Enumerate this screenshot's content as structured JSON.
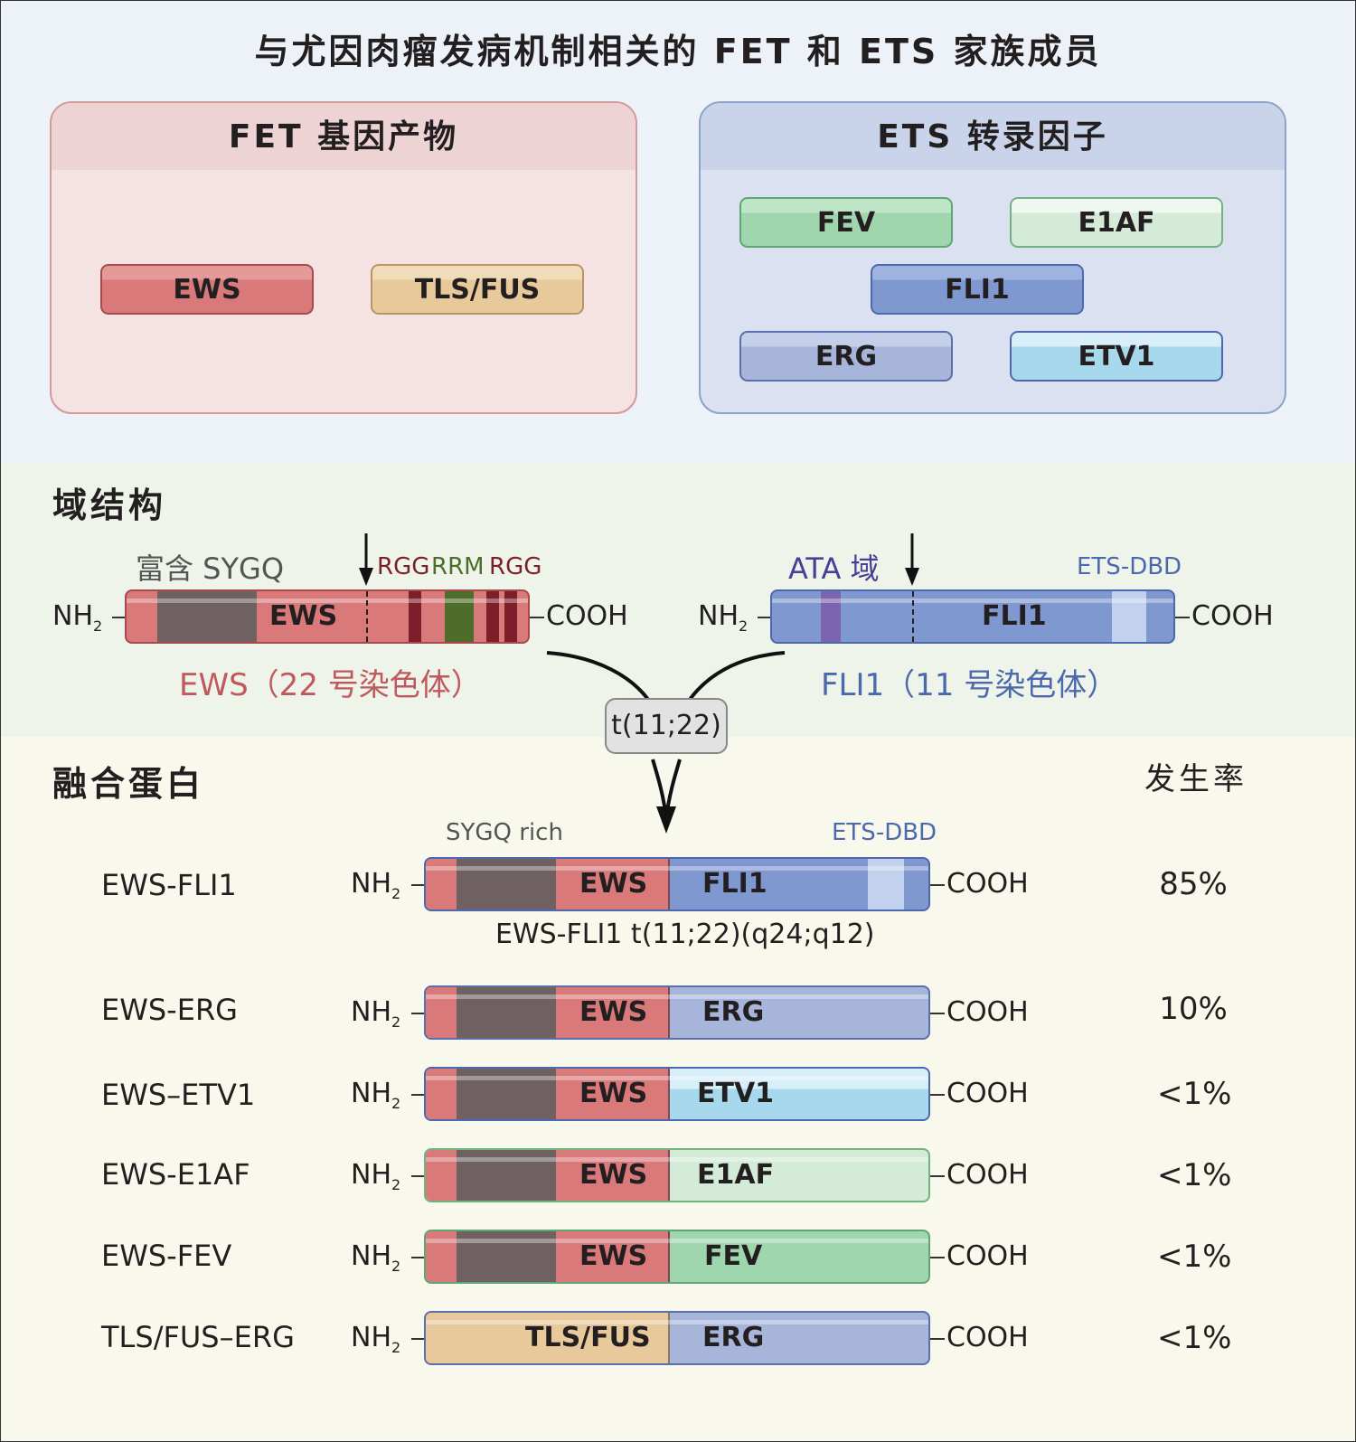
{
  "title": "与尤因肉瘤发病机制相关的 FET 和 ETS 家族成员",
  "fet_panel": {
    "header": "FET 基因产物",
    "genes": [
      "EWS",
      "TLS/FUS"
    ]
  },
  "ets_panel": {
    "header": "ETS 转录因子",
    "genes": [
      "FEV",
      "E1AF",
      "FLI1",
      "ERG",
      "ETV1"
    ]
  },
  "domain_section": {
    "title": "域结构",
    "ews": {
      "label_sygq": "富含 SYGQ",
      "label_rgg1": "RGG",
      "label_rrm": "RRM",
      "label_rgg2": "RGG",
      "bar_label": "EWS",
      "caption": "EWS（22 号染色体）"
    },
    "fli1": {
      "label_ata": "ATA 域",
      "label_etsdbd": "ETS-DBD",
      "bar_label": "FLI1",
      "caption": "FLI1（11 号染色体）"
    },
    "nh2": "NH",
    "nh2_sub": "2",
    "cooh": "COOH",
    "translocation": "t(11;22)"
  },
  "fusion_section": {
    "title": "融合蛋白",
    "incidence_header": "发生率",
    "sygq_label": "SYGQ rich",
    "etsdbd_label": "ETS-DBD",
    "ewsfli1_caption": "EWS-FLI1 t(11;22)(q24;q12)",
    "rows": [
      {
        "name": "EWS-FLI1",
        "left_label": "EWS",
        "right_label": "FLI1",
        "incidence": "85%"
      },
      {
        "name": "EWS-ERG",
        "left_label": "EWS",
        "right_label": "ERG",
        "incidence": "10%"
      },
      {
        "name": "EWS–ETV1",
        "left_label": "EWS",
        "right_label": "ETV1",
        "incidence": "<1%"
      },
      {
        "name": "EWS-E1AF",
        "left_label": "EWS",
        "right_label": "E1AF",
        "incidence": "<1%"
      },
      {
        "name": "EWS-FEV",
        "left_label": "EWS",
        "right_label": "FEV",
        "incidence": "<1%"
      },
      {
        "name": "TLS/FUS–ERG",
        "left_label": "TLS/FUS",
        "right_label": "ERG",
        "incidence": "<1%"
      }
    ]
  },
  "colors": {
    "ews": "#d9797a",
    "ews_border": "#a84a4b",
    "sygq": "#6f6161",
    "tls": "#e7c99c",
    "tls_border": "#b89565",
    "fli1": "#7f98d0",
    "fli1_border": "#4d69ad",
    "erg": "#a7b5da",
    "etv1": "#b8dff0",
    "e1af": "#d3ebd7",
    "fev": "#9fd6ad"
  }
}
